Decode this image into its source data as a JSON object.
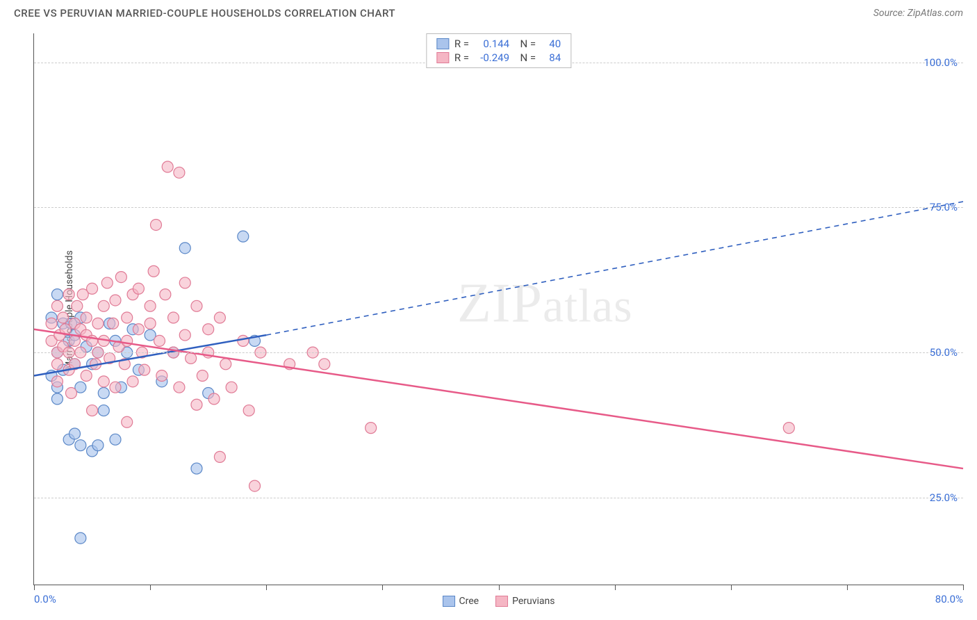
{
  "header": {
    "title": "CREE VS PERUVIAN MARRIED-COUPLE HOUSEHOLDS CORRELATION CHART",
    "source": "Source: ZipAtlas.com"
  },
  "chart": {
    "type": "scatter",
    "ylabel": "Married-couple Households",
    "background_color": "#ffffff",
    "grid_color": "#cccccc",
    "axis_color": "#555555",
    "label_color": "#3b6fd6",
    "xlim": [
      0,
      80
    ],
    "ylim": [
      10,
      105
    ],
    "xtick_positions": [
      0,
      10,
      20,
      30,
      40,
      50,
      60,
      70,
      80
    ],
    "xtick_labels_shown": {
      "0": "0.0%",
      "80": "80.0%"
    },
    "ytick_positions": [
      25,
      50,
      75,
      100
    ],
    "ytick_labels": [
      "25.0%",
      "50.0%",
      "75.0%",
      "100.0%"
    ],
    "watermark": "ZIPatlas",
    "series": [
      {
        "name": "Cree",
        "marker_fill": "#aac4ec",
        "marker_stroke": "#5a87c7",
        "marker_opacity": 0.65,
        "marker_radius": 8,
        "line_color": "#2f5fbf",
        "line_width": 2.5,
        "r_value": "0.144",
        "n_value": "40",
        "trend": {
          "x1": 0,
          "y1": 46,
          "x2_solid": 20,
          "y2_solid": 53,
          "x2": 80,
          "y2": 76
        },
        "points": [
          [
            1.5,
            46
          ],
          [
            1.5,
            56
          ],
          [
            2,
            42
          ],
          [
            2,
            60
          ],
          [
            2,
            50
          ],
          [
            2,
            44
          ],
          [
            2.5,
            55
          ],
          [
            2.5,
            47
          ],
          [
            3,
            35
          ],
          [
            3,
            52
          ],
          [
            3.2,
            55
          ],
          [
            3.5,
            48
          ],
          [
            3.5,
            53
          ],
          [
            3.5,
            36
          ],
          [
            4,
            44
          ],
          [
            4,
            56
          ],
          [
            4,
            34
          ],
          [
            4,
            18
          ],
          [
            4.5,
            51
          ],
          [
            5,
            33
          ],
          [
            5,
            48
          ],
          [
            5.5,
            50
          ],
          [
            5.5,
            34
          ],
          [
            6,
            40
          ],
          [
            6,
            43
          ],
          [
            6.5,
            55
          ],
          [
            7,
            52
          ],
          [
            7,
            35
          ],
          [
            7.5,
            44
          ],
          [
            8,
            50
          ],
          [
            8.5,
            54
          ],
          [
            9,
            47
          ],
          [
            10,
            53
          ],
          [
            11,
            45
          ],
          [
            12,
            50
          ],
          [
            13,
            68
          ],
          [
            14,
            30
          ],
          [
            15,
            43
          ],
          [
            18,
            70
          ],
          [
            19,
            52
          ]
        ]
      },
      {
        "name": "Peruvians",
        "marker_fill": "#f5b6c4",
        "marker_stroke": "#e07a95",
        "marker_opacity": 0.6,
        "marker_radius": 8,
        "line_color": "#e75a88",
        "line_width": 2.5,
        "r_value": "-0.249",
        "n_value": "84",
        "trend": {
          "x1": 0,
          "y1": 54,
          "x2_solid": 80,
          "y2_solid": 30,
          "x2": 80,
          "y2": 30
        },
        "points": [
          [
            1.5,
            52
          ],
          [
            1.5,
            55
          ],
          [
            2,
            50
          ],
          [
            2,
            58
          ],
          [
            2,
            48
          ],
          [
            2,
            45
          ],
          [
            2.2,
            53
          ],
          [
            2.5,
            56
          ],
          [
            2.5,
            51
          ],
          [
            2.7,
            54
          ],
          [
            3,
            47
          ],
          [
            3,
            60
          ],
          [
            3,
            50
          ],
          [
            3.2,
            43
          ],
          [
            3.5,
            55
          ],
          [
            3.5,
            52
          ],
          [
            3.5,
            48
          ],
          [
            3.7,
            58
          ],
          [
            4,
            54
          ],
          [
            4,
            50
          ],
          [
            4.2,
            60
          ],
          [
            4.5,
            46
          ],
          [
            4.5,
            56
          ],
          [
            4.5,
            53
          ],
          [
            5,
            52
          ],
          [
            5,
            40
          ],
          [
            5,
            61
          ],
          [
            5.3,
            48
          ],
          [
            5.5,
            55
          ],
          [
            5.5,
            50
          ],
          [
            6,
            58
          ],
          [
            6,
            45
          ],
          [
            6,
            52
          ],
          [
            6.3,
            62
          ],
          [
            6.5,
            49
          ],
          [
            6.8,
            55
          ],
          [
            7,
            44
          ],
          [
            7,
            59
          ],
          [
            7.3,
            51
          ],
          [
            7.5,
            63
          ],
          [
            7.8,
            48
          ],
          [
            8,
            56
          ],
          [
            8,
            52
          ],
          [
            8,
            38
          ],
          [
            8.5,
            60
          ],
          [
            8.5,
            45
          ],
          [
            9,
            54
          ],
          [
            9,
            61
          ],
          [
            9.3,
            50
          ],
          [
            9.5,
            47
          ],
          [
            10,
            58
          ],
          [
            10,
            55
          ],
          [
            10.3,
            64
          ],
          [
            10.5,
            72
          ],
          [
            10.8,
            52
          ],
          [
            11,
            46
          ],
          [
            11.3,
            60
          ],
          [
            11.5,
            82
          ],
          [
            12,
            50
          ],
          [
            12,
            56
          ],
          [
            12.5,
            81
          ],
          [
            12.5,
            44
          ],
          [
            13,
            62
          ],
          [
            13,
            53
          ],
          [
            13.5,
            49
          ],
          [
            14,
            58
          ],
          [
            14,
            41
          ],
          [
            14.5,
            46
          ],
          [
            15,
            54
          ],
          [
            15,
            50
          ],
          [
            15.5,
            42
          ],
          [
            16,
            56
          ],
          [
            16,
            32
          ],
          [
            16.5,
            48
          ],
          [
            17,
            44
          ],
          [
            18,
            52
          ],
          [
            18.5,
            40
          ],
          [
            19,
            27
          ],
          [
            19.5,
            50
          ],
          [
            22,
            48
          ],
          [
            24,
            50
          ],
          [
            25,
            48
          ],
          [
            29,
            37
          ],
          [
            65,
            37
          ]
        ]
      }
    ],
    "legend_bottom": [
      {
        "label": "Cree",
        "fill": "#aac4ec",
        "stroke": "#5a87c7"
      },
      {
        "label": "Peruvians",
        "fill": "#f5b6c4",
        "stroke": "#e07a95"
      }
    ]
  }
}
